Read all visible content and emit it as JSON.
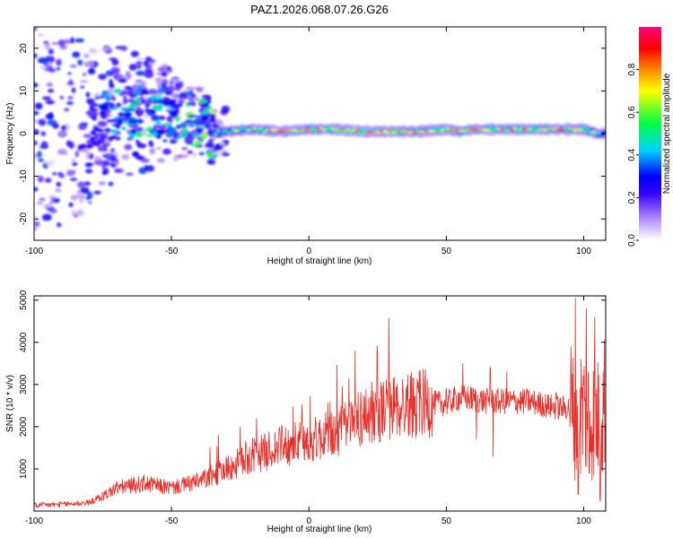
{
  "title": "PAZ1.2026.068.07.26.G26",
  "chart_data": [
    {
      "type": "heatmap",
      "xlabel": "Height of straight line (km)",
      "ylabel": "Frequency (Hz)",
      "xlim": [
        -100,
        108
      ],
      "ylim": [
        -25,
        25
      ],
      "xticks": [
        -100,
        -50,
        0,
        50,
        100
      ],
      "yticks": [
        -20,
        -10,
        0,
        10,
        20
      ],
      "colorbar": {
        "label": "Normalized spectral amplitude",
        "range": [
          0,
          1
        ],
        "ticks": [
          "0.0",
          "0.2",
          "0.4",
          "0.6",
          "0.8"
        ],
        "colormap": "rainbow (white-violet at 0, blue, cyan, green, yellow, red, magenta at 1)"
      },
      "dominant_ridge": {
        "description": "Narrow high-amplitude band near 0-1 Hz above about -35 km; broad scattered low-amplitude energy below about -40 km",
        "x": [
          -100,
          -80,
          -70,
          -60,
          -50,
          -40,
          -35,
          -30,
          -20,
          -10,
          0,
          10,
          20,
          30,
          40,
          50,
          55,
          60,
          70,
          80,
          90,
          100,
          105
        ],
        "center_freq_hz": [
          0,
          2,
          5,
          5,
          4,
          3,
          0,
          0.5,
          1,
          0.5,
          1,
          1,
          0.5,
          0.5,
          0.5,
          1,
          0.5,
          1,
          1,
          1,
          1,
          1,
          0
        ],
        "peak_amplitude": [
          0.1,
          0.2,
          0.35,
          0.45,
          0.5,
          0.55,
          0.6,
          0.7,
          0.8,
          0.9,
          0.85,
          0.9,
          0.95,
          0.9,
          0.85,
          0.9,
          0.85,
          0.9,
          0.85,
          0.9,
          0.85,
          0.9,
          0.6
        ]
      }
    },
    {
      "type": "line",
      "xlabel": "Height of straight line (km)",
      "ylabel": "SNR (10 * v/v)",
      "xlim": [
        -100,
        108
      ],
      "ylim": [
        0,
        5100
      ],
      "xticks": [
        -100,
        -50,
        0,
        50,
        100
      ],
      "yticks": [
        1000,
        2000,
        3000,
        4000,
        5000
      ],
      "color": "#e8302a",
      "series": [
        {
          "name": "SNR envelope",
          "x": [
            -100,
            -90,
            -80,
            -75,
            -70,
            -60,
            -50,
            -40,
            -35,
            -30,
            -25,
            -20,
            -10,
            0,
            10,
            20,
            30,
            40,
            50,
            55,
            60,
            65,
            70,
            80,
            90,
            95,
            100,
            105,
            108
          ],
          "y": [
            130,
            160,
            200,
            350,
            550,
            650,
            550,
            700,
            850,
            1000,
            1150,
            1300,
            1550,
            1650,
            1850,
            2250,
            2450,
            2550,
            2550,
            2700,
            2650,
            2600,
            2600,
            2600,
            2450,
            2450,
            2400,
            2150,
            2700
          ]
        }
      ],
      "spikes": [
        {
          "x": -33,
          "y": 1800
        },
        {
          "x": -25,
          "y": 2000
        },
        {
          "x": -19,
          "y": 2200
        },
        {
          "x": 40,
          "y": 2800
        },
        {
          "x": 50,
          "y": 2900
        },
        {
          "x": 56,
          "y": 3500
        },
        {
          "x": 61,
          "y": 1700
        },
        {
          "x": 66,
          "y": 3400
        },
        {
          "x": 67,
          "y": 1300
        },
        {
          "x": 72,
          "y": 3300
        },
        {
          "x": 90,
          "y": 2800
        },
        {
          "x": 96,
          "y": 2000
        },
        {
          "x": 97,
          "y": 5050
        },
        {
          "x": 98,
          "y": 400
        },
        {
          "x": 101,
          "y": 4800
        },
        {
          "x": 102,
          "y": 900
        },
        {
          "x": 104,
          "y": 4600
        },
        {
          "x": 106,
          "y": 250
        },
        {
          "x": 107,
          "y": 3300
        }
      ]
    }
  ]
}
